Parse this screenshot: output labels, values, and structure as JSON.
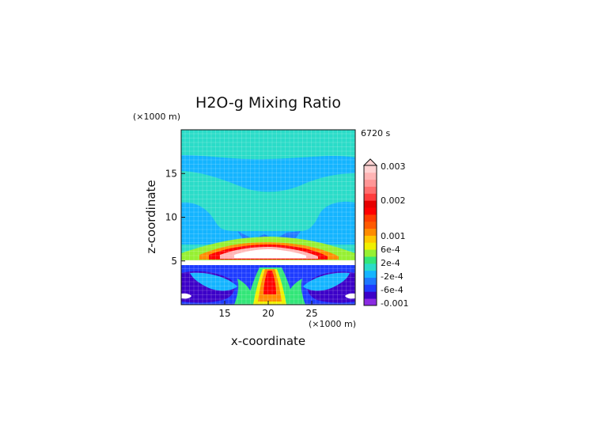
{
  "chart_data": {
    "type": "heatmap",
    "title": "H2O-g Mixing Ratio",
    "time_label": "6720 s",
    "xlabel": "x-coordinate",
    "ylabel": "z-coordinate",
    "x_unit": "(×1000 m)",
    "y_unit": "(×1000 m)",
    "xlim": [
      10,
      30
    ],
    "ylim": [
      0,
      20
    ],
    "x_ticks": [
      15,
      20,
      25
    ],
    "y_ticks": [
      5,
      10,
      15
    ],
    "grid": false,
    "colorbar": {
      "orientation": "vertical",
      "labels": [
        "0.003",
        "0.002",
        "0.001",
        "6e-4",
        "2e-4",
        "-2e-4",
        "-6e-4",
        "-0.001"
      ],
      "levels_bottom_to_top": [
        -0.001,
        -0.0008,
        -0.0006,
        -0.0004,
        -0.0002,
        0,
        0.0002,
        0.0004,
        0.0006,
        0.0008,
        0.001,
        0.0012,
        0.0014,
        0.0016,
        0.0018,
        0.002,
        0.0022,
        0.0024,
        0.0026,
        0.0028,
        0.003
      ],
      "colors_bottom_to_top": [
        "#8a2be2",
        "#3c00c8",
        "#1e3cff",
        "#1e78ff",
        "#14b4ff",
        "#2adcc8",
        "#32e678",
        "#96f032",
        "#f0f000",
        "#ffc800",
        "#ff8c00",
        "#ff5a00",
        "#ff3c00",
        "#ff0000",
        "#e60000",
        "#ff3c3c",
        "#ff6e6e",
        "#ff9696",
        "#ffb4b4",
        "#ffd2d2"
      ]
    }
  }
}
